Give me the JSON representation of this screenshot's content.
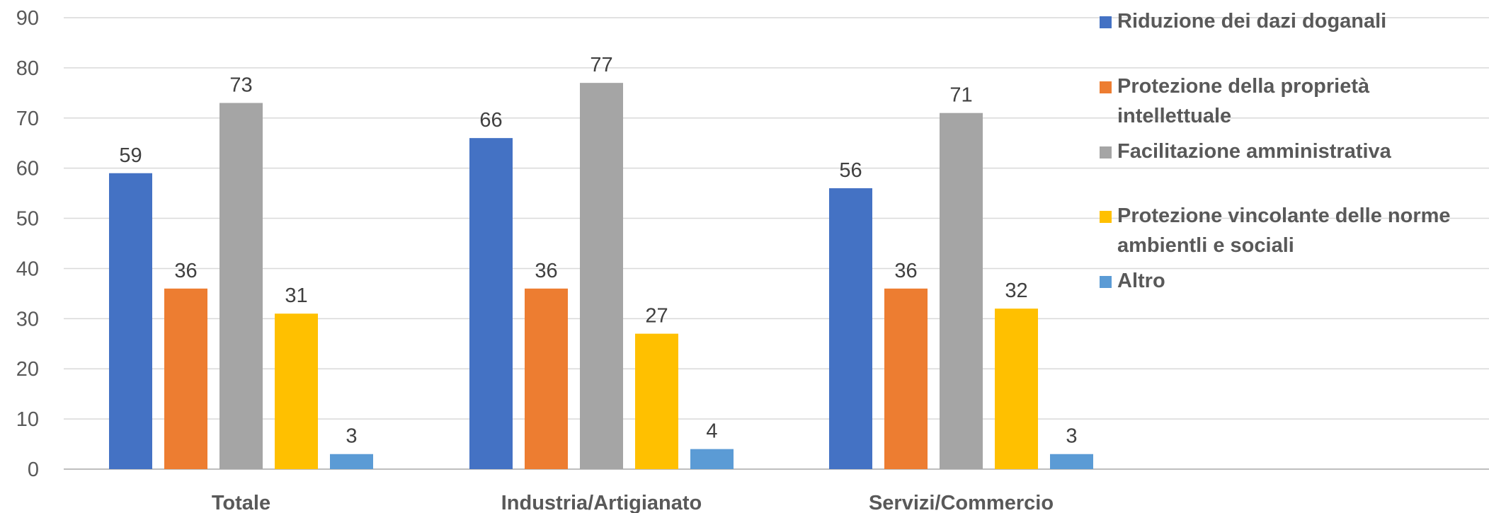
{
  "chart_data": {
    "type": "bar",
    "categories": [
      "Totale",
      "Industria/Artigianato",
      "Servizi/Commercio"
    ],
    "series": [
      {
        "name": "Riduzione dei dazi doganali",
        "color": "#4472C4",
        "values": [
          59,
          66,
          56
        ]
      },
      {
        "name": "Protezione della proprietà intellettuale",
        "color": "#ED7D31",
        "values": [
          36,
          36,
          36
        ]
      },
      {
        "name": "Facilitazione amministrativa",
        "color": "#A5A5A5",
        "values": [
          73,
          77,
          71
        ]
      },
      {
        "name": "Protezione vincolante delle norme ambientli e sociali",
        "color": "#FFC000",
        "values": [
          31,
          27,
          32
        ]
      },
      {
        "name": "Altro",
        "color": "#5B9BD5",
        "values": [
          3,
          4,
          3
        ]
      }
    ],
    "ylim": [
      0,
      90
    ],
    "yticks": [
      0,
      10,
      20,
      30,
      40,
      50,
      60,
      70,
      80,
      90
    ],
    "grid": true,
    "legend_position": "right"
  }
}
